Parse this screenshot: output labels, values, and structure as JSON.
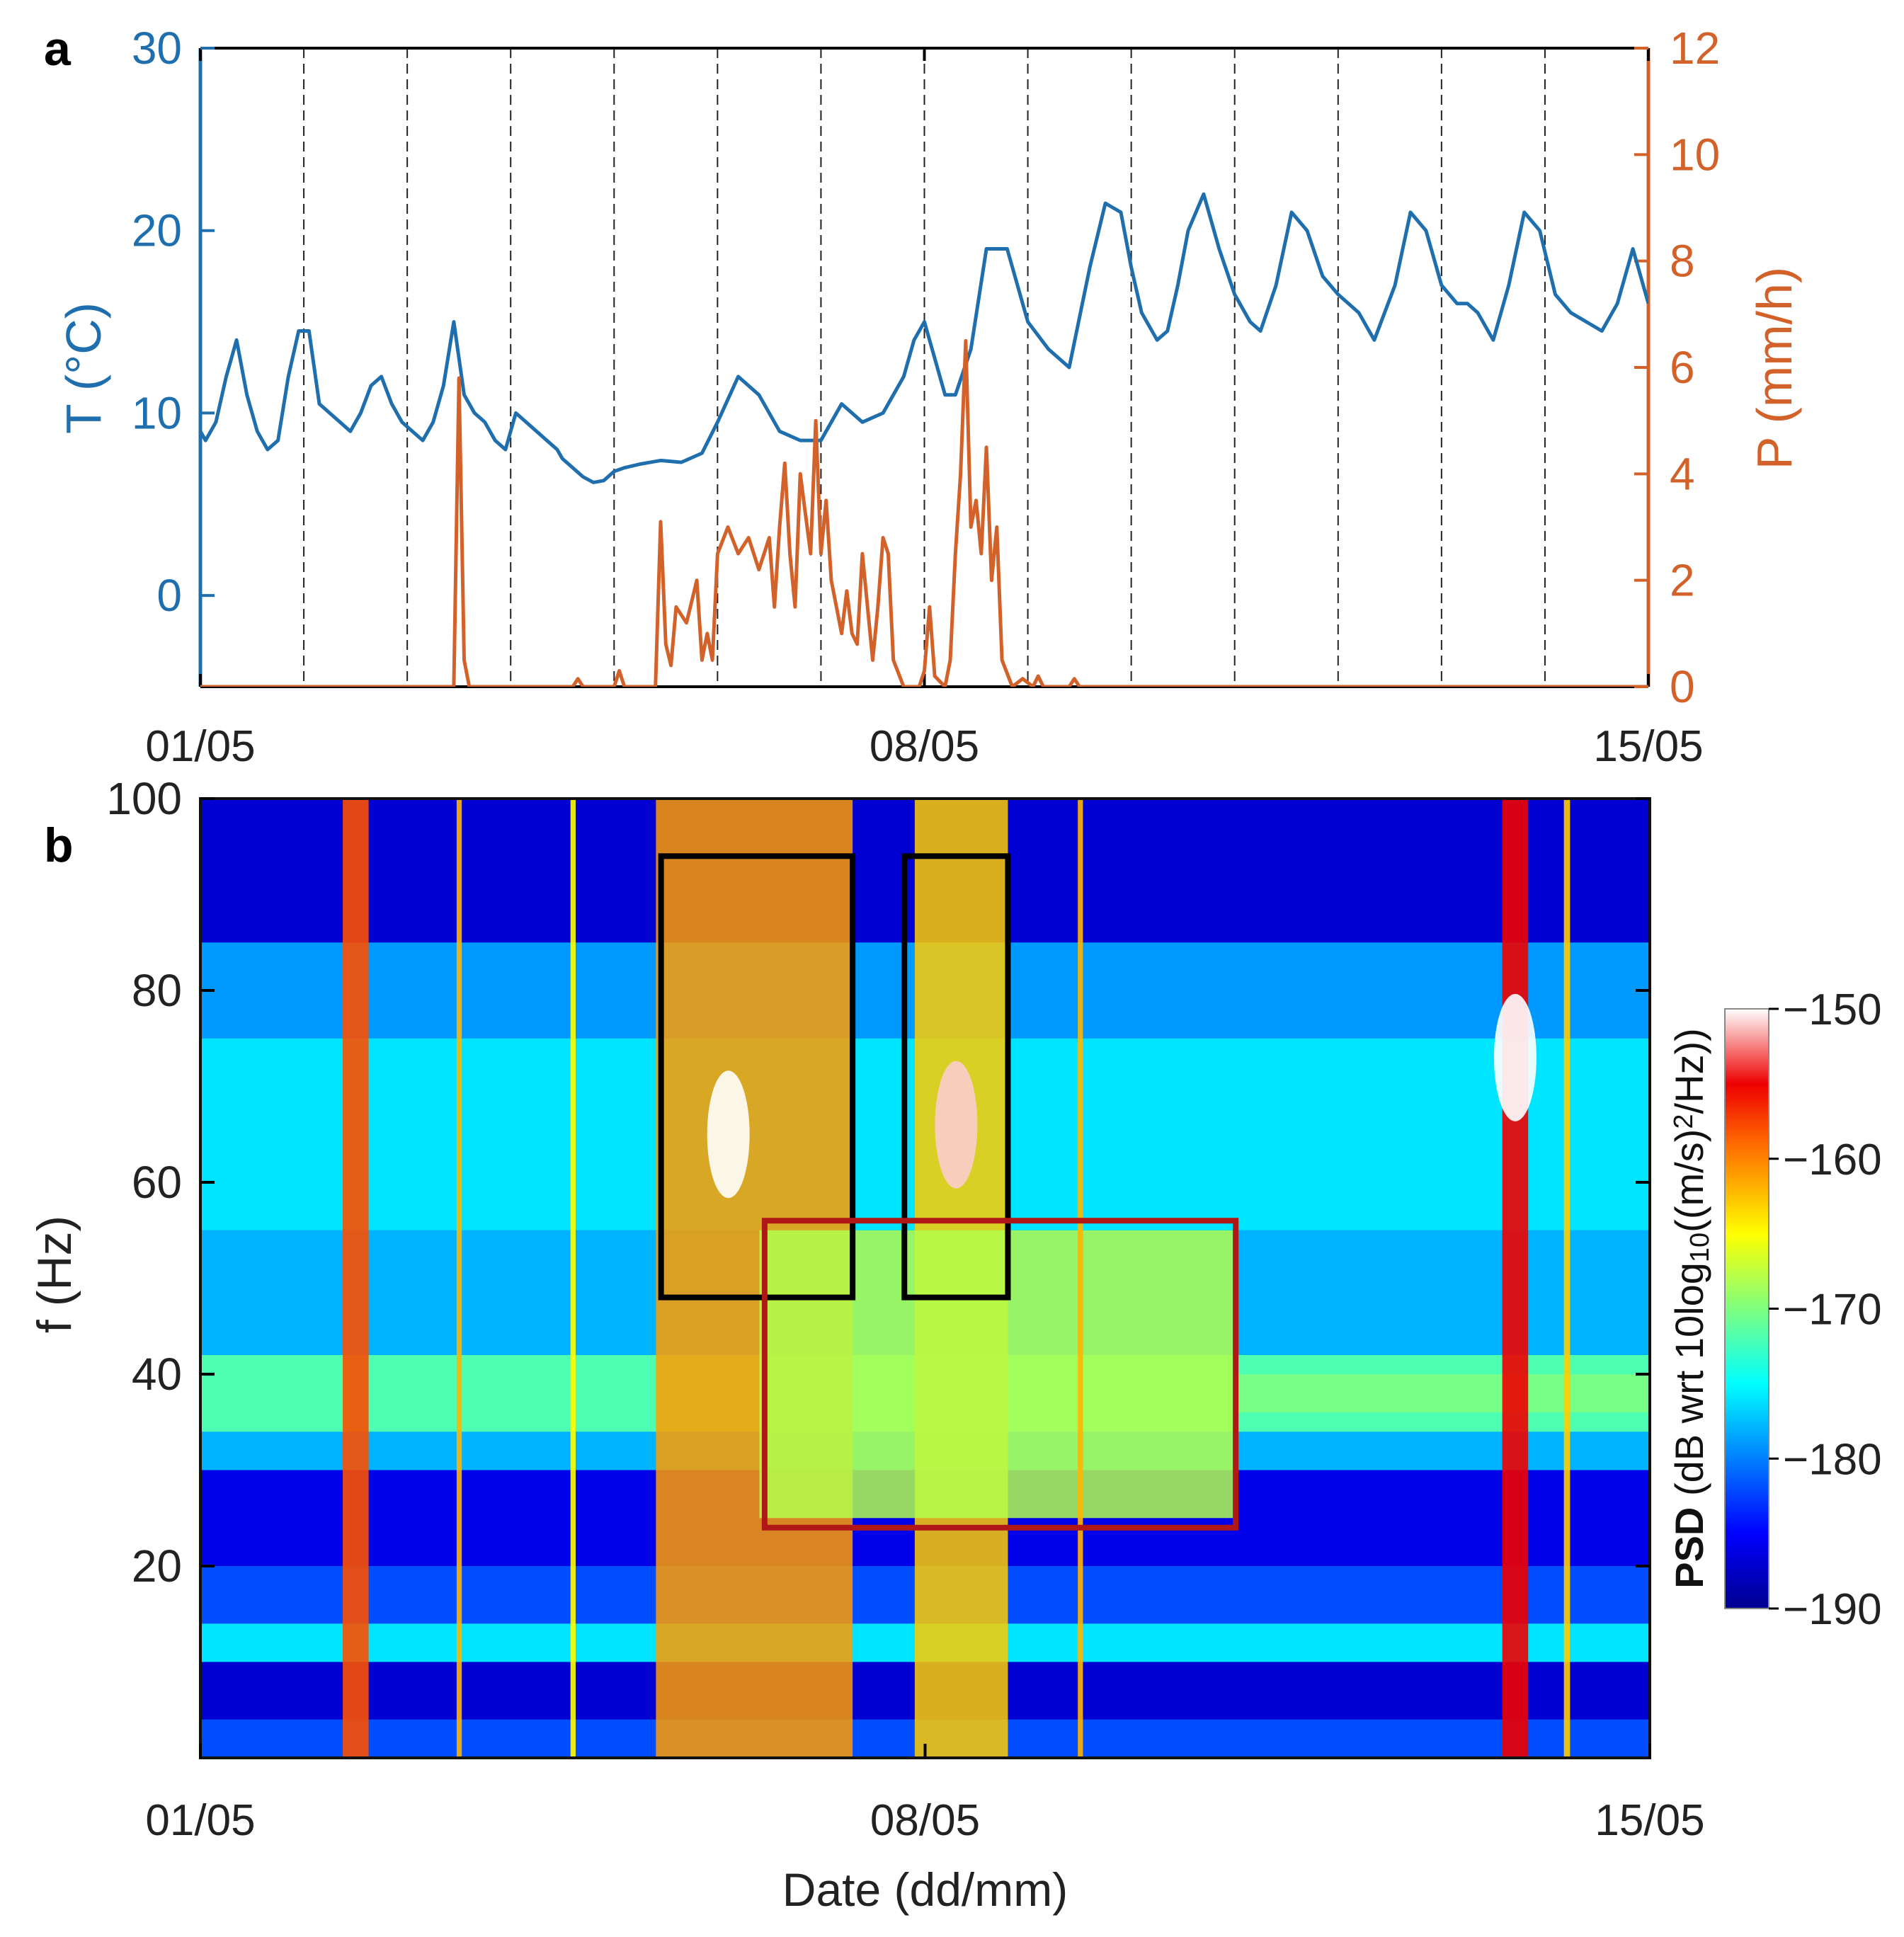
{
  "chart_data": [
    {
      "panel": "a",
      "type": "line",
      "xlabel": "",
      "x_tick_labels": [
        "01/05",
        "08/05",
        "15/05"
      ],
      "x_ticks_days": [
        0,
        7,
        14
      ],
      "xlim_days": [
        0,
        14
      ],
      "grid": "vertical dashed lines every 1 day",
      "left_axis": {
        "label": "T (°C)",
        "color": "#1f6fae",
        "ylim": [
          -5,
          30
        ],
        "ticks": [
          0,
          10,
          20,
          30
        ]
      },
      "right_axis": {
        "label": "P (mm/h)",
        "color": "#d2622a",
        "ylim": [
          0,
          12
        ],
        "ticks": [
          0,
          2,
          4,
          6,
          8,
          10,
          12
        ]
      },
      "series": [
        {
          "name": "T (°C)",
          "axis": "left",
          "color": "#1f6fae",
          "x": [
            0,
            0.05,
            0.15,
            0.25,
            0.35,
            0.45,
            0.55,
            0.65,
            0.75,
            0.85,
            0.95,
            1.05,
            1.15,
            1.25,
            1.35,
            1.45,
            1.55,
            1.65,
            1.75,
            1.85,
            1.95,
            2.05,
            2.15,
            2.25,
            2.35,
            2.45,
            2.5,
            2.55,
            2.65,
            2.75,
            2.85,
            2.95,
            3.05,
            3.15,
            3.25,
            3.35,
            3.45,
            3.5,
            3.6,
            3.7,
            3.8,
            3.9,
            4.0,
            4.1,
            4.25,
            4.45,
            4.65,
            4.85,
            5.0,
            5.2,
            5.4,
            5.6,
            5.8,
            6.0,
            6.2,
            6.4,
            6.6,
            6.8,
            6.9,
            7.0,
            7.1,
            7.2,
            7.3,
            7.45,
            7.6,
            7.8,
            8.0,
            8.2,
            8.4,
            8.6,
            8.75,
            8.9,
            9.0,
            9.1,
            9.25,
            9.35,
            9.45,
            9.55,
            9.7,
            9.85,
            10.0,
            10.15,
            10.25,
            10.4,
            10.55,
            10.7,
            10.85,
            11.0,
            11.1,
            11.2,
            11.35,
            11.55,
            11.7,
            11.85,
            12.0,
            12.15,
            12.25,
            12.35,
            12.5,
            12.65,
            12.8,
            12.95,
            13.1,
            13.25,
            13.4,
            13.55,
            13.7,
            13.85,
            14.0
          ],
          "y": [
            9,
            8.5,
            9.5,
            12,
            14,
            11,
            9,
            8,
            8.5,
            12,
            14.5,
            14.5,
            10.5,
            10,
            9.5,
            9,
            10,
            11.5,
            12,
            10.5,
            9.5,
            9,
            8.5,
            9.5,
            11.5,
            15,
            13,
            11,
            10,
            9.5,
            8.5,
            8,
            10,
            9.5,
            9,
            8.5,
            8,
            7.5,
            7,
            6.5,
            6.2,
            6.3,
            6.8,
            7,
            7.2,
            7.4,
            7.3,
            7.8,
            9.5,
            12,
            11,
            9,
            8.5,
            8.5,
            10.5,
            9.5,
            10,
            12,
            14,
            15,
            13,
            11,
            11,
            13.5,
            19,
            19,
            15,
            13.5,
            12.5,
            18,
            21.5,
            21,
            18,
            15.5,
            14,
            14.5,
            17,
            20,
            22,
            19,
            16.5,
            15,
            14.5,
            17,
            21,
            20,
            17.5,
            16.5,
            16,
            15.5,
            14,
            17,
            21,
            20,
            17,
            16,
            16,
            15.5,
            14,
            17,
            21,
            20,
            16.5,
            15.5,
            15,
            14.5,
            16,
            19,
            16
          ]
        },
        {
          "name": "P (mm/h)",
          "axis": "right",
          "color": "#d2622a",
          "x": [
            0,
            2.45,
            2.5,
            2.55,
            2.6,
            2.65,
            3.6,
            3.65,
            3.7,
            4.0,
            4.05,
            4.1,
            4.4,
            4.45,
            4.5,
            4.55,
            4.6,
            4.7,
            4.8,
            4.85,
            4.9,
            4.95,
            5.0,
            5.1,
            5.2,
            5.3,
            5.4,
            5.5,
            5.55,
            5.6,
            5.65,
            5.7,
            5.75,
            5.8,
            5.9,
            5.95,
            6.0,
            6.05,
            6.1,
            6.15,
            6.2,
            6.25,
            6.3,
            6.35,
            6.4,
            6.45,
            6.5,
            6.55,
            6.6,
            6.65,
            6.7,
            6.8,
            6.9,
            6.95,
            7.0,
            7.05,
            7.1,
            7.2,
            7.25,
            7.3,
            7.35,
            7.4,
            7.45,
            7.5,
            7.55,
            7.6,
            7.65,
            7.7,
            7.75,
            7.85,
            7.95,
            8.05,
            8.1,
            8.15,
            8.4,
            8.45,
            8.5,
            14.0
          ],
          "y": [
            0,
            0,
            5.8,
            0.5,
            0,
            0,
            0,
            0.15,
            0,
            0,
            0.3,
            0,
            0,
            3.1,
            0.8,
            0.4,
            1.5,
            1.2,
            2.0,
            0.5,
            1.0,
            0.5,
            2.5,
            3.0,
            2.5,
            2.8,
            2.2,
            2.8,
            1.5,
            3.0,
            4.2,
            2.5,
            1.5,
            4.0,
            2.5,
            5.0,
            2.5,
            3.5,
            2.0,
            1.5,
            1.0,
            1.8,
            1.0,
            0.8,
            2.5,
            1.5,
            0.5,
            1.5,
            2.8,
            2.5,
            0.5,
            0,
            0,
            0,
            0.3,
            1.5,
            0.2,
            0,
            0.5,
            2.5,
            4.0,
            6.5,
            3.0,
            3.5,
            2.5,
            4.5,
            2.0,
            3.0,
            0.5,
            0,
            0.15,
            0,
            0.2,
            0,
            0,
            0.15,
            0,
            0
          ]
        }
      ]
    },
    {
      "panel": "b",
      "type": "heatmap",
      "xlabel": "Date (dd/mm)",
      "ylabel": "f (Hz)",
      "x_tick_labels": [
        "01/05",
        "08/05",
        "15/05"
      ],
      "x_ticks_days": [
        0,
        7,
        14
      ],
      "xlim_days": [
        0,
        14
      ],
      "ylim": [
        0,
        100
      ],
      "y_ticks": [
        20,
        40,
        60,
        80,
        100
      ],
      "colorbar": {
        "label_bold": "PSD",
        "label_rest": " (dB wrt 10log",
        "label_sub": "10",
        "label_tail": "((m/s)",
        "label_sup": "2",
        "label_end": "/Hz))",
        "range": [
          -190,
          -150
        ],
        "ticks": [
          "−150",
          "−160",
          "−170",
          "−180",
          "−190"
        ],
        "tick_values": [
          -150,
          -160,
          -170,
          -180,
          -190
        ]
      },
      "background_level_db": -180,
      "horizontal_bands": [
        {
          "f_range": [
            0,
            4
          ],
          "level_db": -182
        },
        {
          "f_range": [
            4,
            10
          ],
          "level_db": -187
        },
        {
          "f_range": [
            10,
            14
          ],
          "level_db": -176
        },
        {
          "f_range": [
            14,
            20
          ],
          "level_db": -182
        },
        {
          "f_range": [
            20,
            30
          ],
          "level_db": -186
        },
        {
          "f_range": [
            30,
            34
          ],
          "level_db": -178
        },
        {
          "f_range": [
            34,
            42
          ],
          "level_db": -172
        },
        {
          "f_range": [
            42,
            55
          ],
          "level_db": -178
        },
        {
          "f_range": [
            55,
            75
          ],
          "level_db": -176
        },
        {
          "f_range": [
            75,
            85
          ],
          "level_db": -179
        },
        {
          "f_range": [
            85,
            100
          ],
          "level_db": -187
        }
      ],
      "energetic_periods": [
        {
          "t_range": [
            4.4,
            6.3
          ],
          "f_range": [
            0,
            100
          ],
          "level_db": -161
        },
        {
          "t_range": [
            6.9,
            7.8
          ],
          "f_range": [
            0,
            100
          ],
          "level_db": -163
        },
        {
          "t_range": [
            5.4,
            10.0
          ],
          "f_range": [
            25,
            55
          ],
          "level_db": -168
        },
        {
          "t_range": [
            10.0,
            14.0
          ],
          "f_range": [
            36,
            40
          ],
          "level_db": -170
        }
      ],
      "vertical_streaks": [
        {
          "t": 1.5,
          "width_days": 0.25,
          "level_db": -158
        },
        {
          "t": 2.5,
          "width_days": 0.05,
          "level_db": -162
        },
        {
          "t": 3.6,
          "width_days": 0.05,
          "level_db": -165
        },
        {
          "t": 8.5,
          "width_days": 0.05,
          "level_db": -162
        },
        {
          "t": 12.7,
          "width_days": 0.25,
          "level_db": -155
        },
        {
          "t": 13.2,
          "width_days": 0.06,
          "level_db": -163
        }
      ],
      "hotspots": [
        {
          "t": 5.1,
          "f": 65,
          "level_db": -150
        },
        {
          "t": 7.3,
          "f": 66,
          "level_db": -151
        },
        {
          "t": 12.7,
          "f": 73,
          "level_db": -150
        }
      ],
      "annotations": [
        {
          "kind": "box",
          "color": "#000000",
          "t_range": [
            4.45,
            6.3
          ],
          "f_range": [
            48,
            94
          ]
        },
        {
          "kind": "box",
          "color": "#000000",
          "t_range": [
            6.8,
            7.8
          ],
          "f_range": [
            48,
            94
          ]
        },
        {
          "kind": "box",
          "color": "#b01818",
          "t_range": [
            5.45,
            10.0
          ],
          "f_range": [
            24,
            56
          ]
        }
      ]
    }
  ],
  "labels": {
    "panel_a": "a",
    "panel_b": "b"
  }
}
